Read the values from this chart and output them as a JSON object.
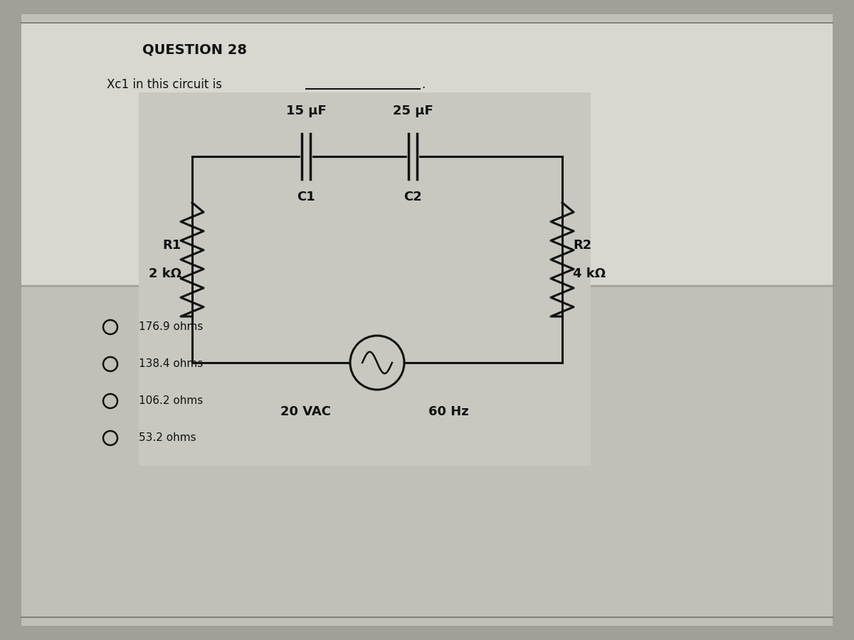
{
  "title": "QUESTION 28",
  "question_text": "Xc1 in this circuit is",
  "bg_color_main": "#b8b8b0",
  "bg_color_white_area": "#e8e8e4",
  "bg_color_circuit_box": "#c8c8c0",
  "c1_label": "C1",
  "c2_label": "C2",
  "r1_label": "R1",
  "r1_val": "2 kΩ",
  "r2_label": "R2",
  "r2_val": "4 kΩ",
  "c1_val": "15 μF",
  "c2_val": "25 μF",
  "source_val": "20 VAC",
  "freq_val": "60 Hz",
  "choices": [
    "176.9 ohms",
    "138.4 ohms",
    "106.2 ohms",
    "53.2 ohms"
  ],
  "text_color": "#111111",
  "line_color": "#111111",
  "title_fontsize": 14,
  "body_fontsize": 12,
  "circuit_fontsize": 13
}
